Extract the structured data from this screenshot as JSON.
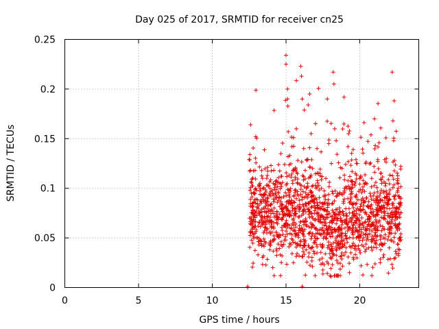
{
  "chart_data": {
    "type": "scatter",
    "title": "Day 025 of 2017, SRMTID for receiver cn25",
    "xlabel": "GPS time / hours",
    "ylabel": "SRMTID / TECUs",
    "xlim": [
      0,
      24
    ],
    "ylim": [
      0,
      0.25
    ],
    "x_ticks": [
      0,
      5,
      10,
      15,
      20
    ],
    "x_tick_labels": [
      "0",
      "5",
      "10",
      "15",
      "20"
    ],
    "y_ticks": [
      0,
      0.05,
      0.1,
      0.15,
      0.2,
      0.25
    ],
    "y_tick_labels": [
      "0",
      "0.05",
      "0.1",
      "0.15",
      "0.2",
      "0.25"
    ],
    "grid": true,
    "marker": "+",
    "series": [
      {
        "name": "SRMTID",
        "color": "#e00000",
        "points": [
          [
            12.4,
            0.001
          ],
          [
            12.4,
            0.0
          ],
          [
            16.1,
            0.001
          ],
          [
            12.5,
            0.129
          ],
          [
            12.55,
            0.134
          ],
          [
            12.6,
            0.164
          ],
          [
            12.6,
            0.118
          ],
          [
            12.65,
            0.095
          ],
          [
            12.7,
            0.082
          ],
          [
            12.75,
            0.062
          ],
          [
            12.8,
            0.071
          ],
          [
            12.9,
            0.118
          ],
          [
            12.95,
            0.152
          ],
          [
            13.0,
            0.098
          ],
          [
            13.05,
            0.05
          ],
          [
            13.1,
            0.033
          ],
          [
            13.2,
            0.075
          ],
          [
            13.3,
            0.068
          ],
          [
            13.35,
            0.042
          ],
          [
            13.5,
            0.087
          ],
          [
            13.6,
            0.06
          ],
          [
            13.7,
            0.055
          ],
          [
            13.8,
            0.072
          ],
          [
            13.9,
            0.095
          ],
          [
            14.0,
            0.063
          ],
          [
            14.1,
            0.02
          ],
          [
            14.2,
            0.08
          ],
          [
            14.3,
            0.107
          ],
          [
            14.4,
            0.052
          ],
          [
            14.5,
            0.088
          ],
          [
            14.6,
            0.033
          ],
          [
            14.7,
            0.112
          ],
          [
            14.8,
            0.074
          ],
          [
            14.9,
            0.124
          ],
          [
            15.0,
            0.234
          ],
          [
            15.0,
            0.225
          ],
          [
            15.1,
            0.2
          ],
          [
            15.1,
            0.19
          ],
          [
            15.15,
            0.157
          ],
          [
            15.2,
            0.113
          ],
          [
            15.25,
            0.133
          ],
          [
            15.3,
            0.085
          ],
          [
            15.4,
            0.142
          ],
          [
            15.5,
            0.025
          ],
          [
            15.6,
            0.098
          ],
          [
            15.7,
            0.16
          ],
          [
            15.8,
            0.128
          ],
          [
            15.9,
            0.088
          ],
          [
            16.0,
            0.223
          ],
          [
            16.05,
            0.213
          ],
          [
            16.1,
            0.19
          ],
          [
            16.2,
            0.14
          ],
          [
            16.3,
            0.118
          ],
          [
            16.4,
            0.062
          ],
          [
            16.5,
            0.184
          ],
          [
            16.6,
            0.195
          ],
          [
            16.7,
            0.155
          ],
          [
            16.8,
            0.12
          ],
          [
            16.9,
            0.045
          ],
          [
            17.0,
            0.09
          ],
          [
            17.1,
            0.14
          ],
          [
            17.2,
            0.115
          ],
          [
            17.3,
            0.072
          ],
          [
            17.4,
            0.1
          ],
          [
            17.5,
            0.043
          ],
          [
            17.6,
            0.066
          ],
          [
            17.7,
            0.11
          ],
          [
            17.8,
            0.19
          ],
          [
            17.9,
            0.145
          ],
          [
            18.0,
            0.03
          ],
          [
            18.05,
            0.011
          ],
          [
            18.1,
            0.055
          ],
          [
            18.2,
            0.217
          ],
          [
            18.25,
            0.205
          ],
          [
            18.3,
            0.16
          ],
          [
            18.4,
            0.148
          ],
          [
            18.5,
            0.095
          ],
          [
            18.6,
            0.04
          ],
          [
            18.7,
            0.07
          ],
          [
            18.8,
            0.12
          ],
          [
            18.9,
            0.085
          ],
          [
            19.0,
            0.06
          ],
          [
            19.1,
            0.1
          ],
          [
            19.2,
            0.142
          ],
          [
            19.3,
            0.015
          ],
          [
            19.4,
            0.035
          ],
          [
            19.5,
            0.06
          ],
          [
            19.6,
            0.085
          ],
          [
            19.7,
            0.115
          ],
          [
            19.8,
            0.07
          ],
          [
            20.0,
            0.05
          ],
          [
            20.2,
            0.09
          ],
          [
            20.4,
            0.125
          ],
          [
            20.6,
            0.04
          ],
          [
            20.8,
            0.075
          ],
          [
            21.0,
            0.17
          ],
          [
            21.05,
            0.143
          ],
          [
            21.2,
            0.06
          ],
          [
            21.4,
            0.095
          ],
          [
            21.6,
            0.05
          ],
          [
            21.8,
            0.13
          ],
          [
            22.0,
            0.04
          ],
          [
            22.2,
            0.217
          ],
          [
            22.25,
            0.168
          ],
          [
            22.3,
            0.148
          ],
          [
            22.35,
            0.128
          ],
          [
            22.4,
            0.03
          ],
          [
            22.5,
            0.07
          ],
          [
            22.6,
            0.1
          ],
          [
            22.7,
            0.05
          ],
          [
            22.8,
            0.09
          ]
        ],
        "filler": {
          "count": 1500,
          "x_range": [
            12.5,
            22.8
          ],
          "y_base": 0.073,
          "y_spread": 0.024,
          "dip_center": 18.3,
          "dip_depth": 0.018,
          "tail_rate": 0.06,
          "seed": 25
        }
      }
    ]
  }
}
